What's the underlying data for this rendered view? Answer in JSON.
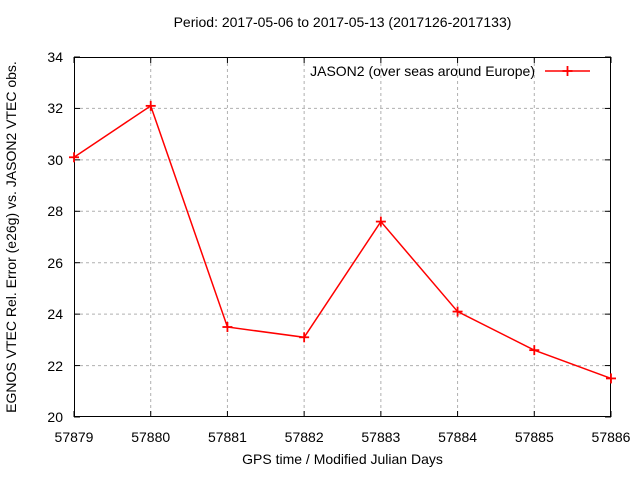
{
  "chart_data": {
    "type": "line",
    "title": "Period: 2017-05-06 to 2017-05-13 (2017126-2017133)",
    "xlabel": "GPS time / Modified Julian Days",
    "ylabel": "EGNOS VTEC Rel. Error (e26g) vs. JASON2 VTEC obs.",
    "x": [
      57879,
      57880,
      57881,
      57882,
      57883,
      57884,
      57885,
      57886
    ],
    "series": [
      {
        "name": "JASON2 (over seas around Europe)",
        "values": [
          30.1,
          32.1,
          23.5,
          23.1,
          27.6,
          24.1,
          22.6,
          21.5
        ],
        "color": "#ff0000",
        "marker": "plus"
      }
    ],
    "xlim": [
      57879,
      57886
    ],
    "ylim": [
      20,
      34
    ],
    "ytick_step": 2,
    "grid": true,
    "grid_color": "#b0b0b0",
    "border_color": "#000000",
    "legend_position": "top-right-inside"
  }
}
